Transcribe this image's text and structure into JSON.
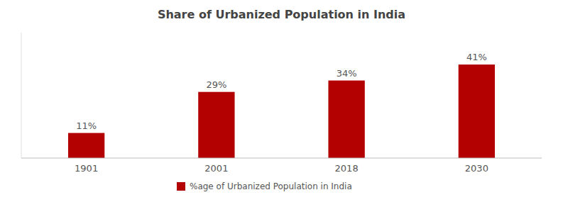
{
  "chart_data": {
    "type": "bar",
    "title": "Share of Urbanized Population in India",
    "categories": [
      "1901",
      "2001",
      "2018",
      "2030"
    ],
    "series": [
      {
        "name": "%age of Urbanized Population in India",
        "color": "#B30000",
        "values": [
          11,
          29,
          34,
          41
        ],
        "value_labels": [
          "11%",
          "29%",
          "34%",
          "41%"
        ]
      }
    ],
    "ylim": [
      0,
      55
    ],
    "data_labels": true,
    "tick_labels": "x",
    "legend": "bottom",
    "grid": false
  }
}
